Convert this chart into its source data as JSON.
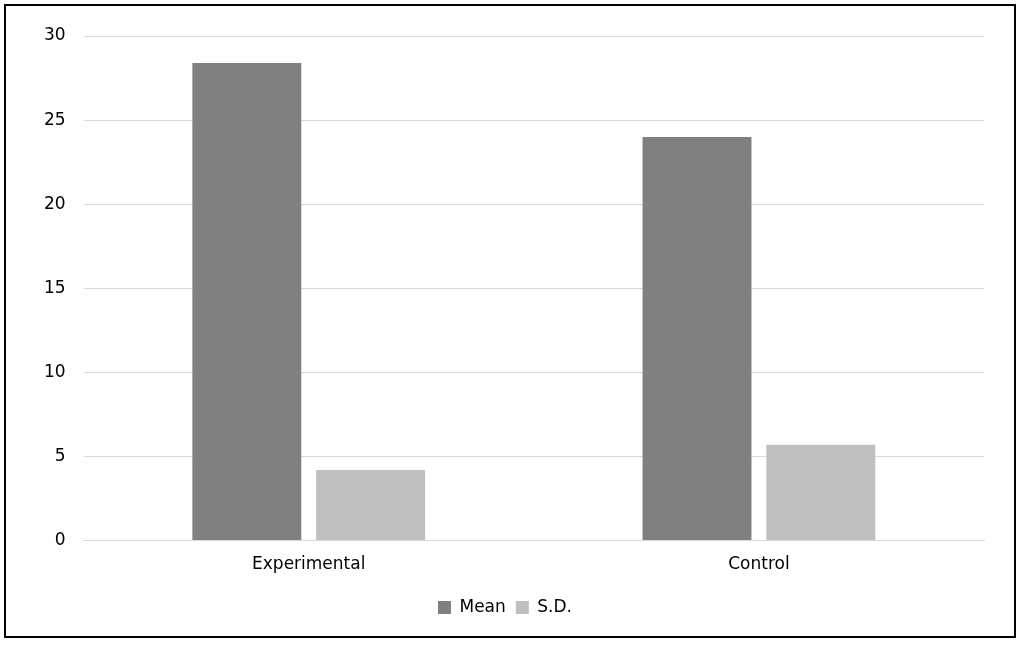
{
  "chart_data": {
    "type": "bar",
    "categories": [
      "Experimental",
      "Control"
    ],
    "series": [
      {
        "name": "Mean",
        "color": "#808080",
        "values": [
          28.4,
          24.0
        ]
      },
      {
        "name": "S.D.",
        "color": "#bfbfbf",
        "values": [
          4.2,
          5.7
        ]
      }
    ],
    "ylim": [
      0,
      30
    ],
    "yticks": [
      0,
      5,
      10,
      15,
      20,
      25,
      30
    ],
    "grid": "y",
    "legend": "bottom"
  }
}
